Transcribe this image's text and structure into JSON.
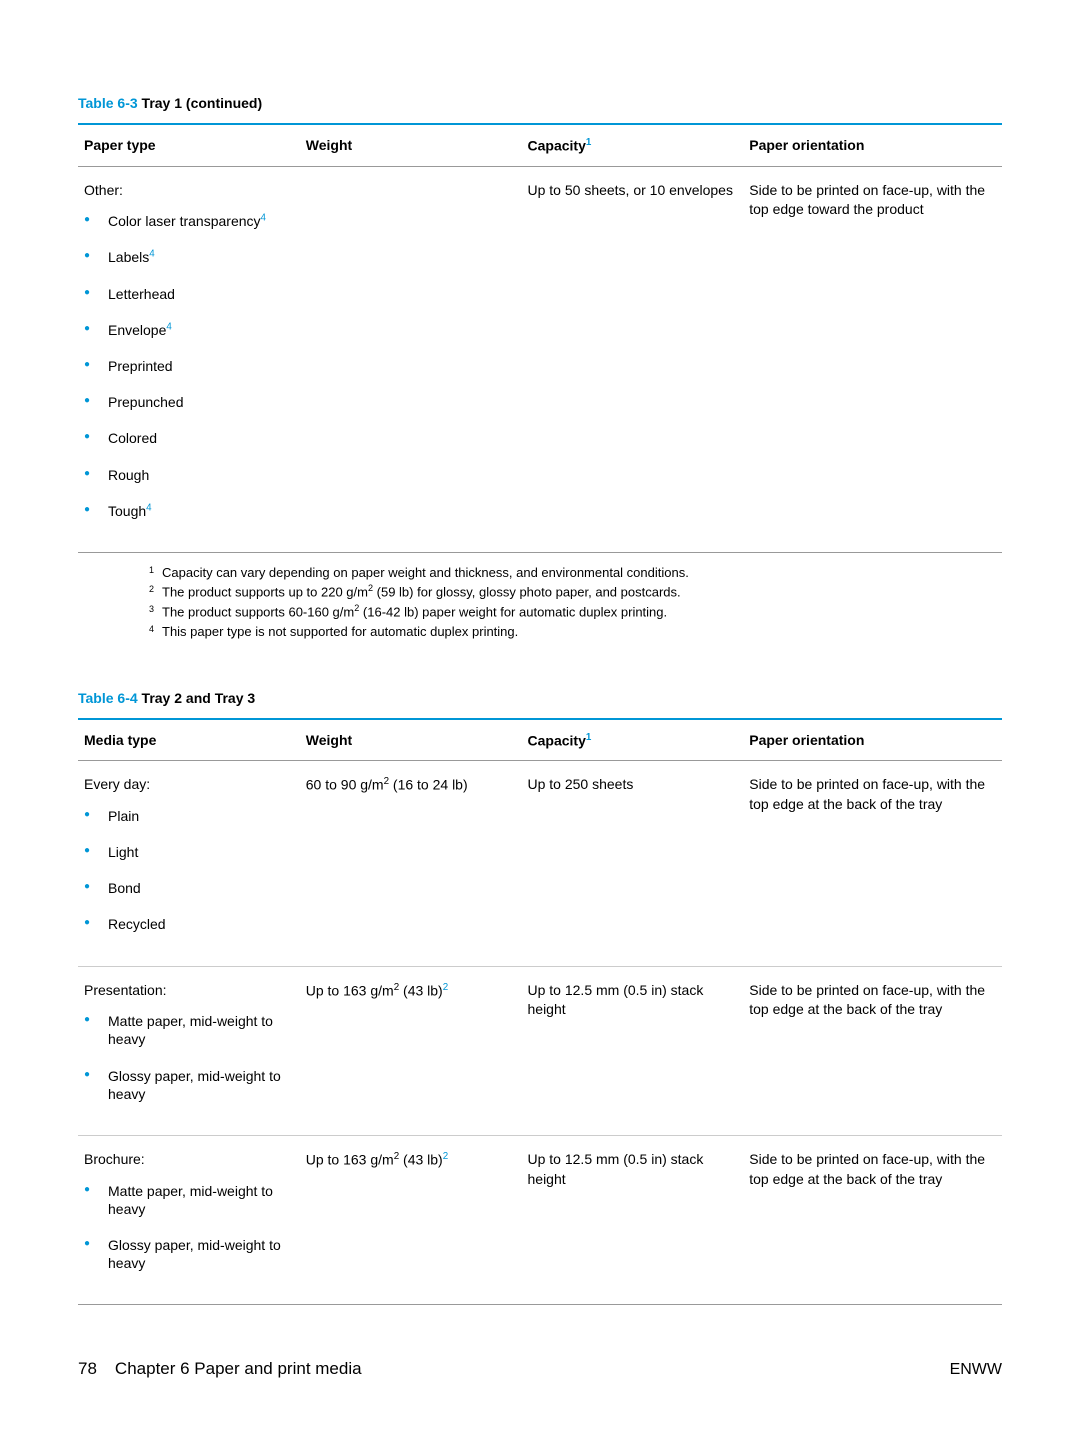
{
  "colors": {
    "accent": "#0096d6",
    "text": "#000000",
    "rule_main": "#0096d6",
    "rule_thin": "#999999",
    "background": "#ffffff"
  },
  "table63": {
    "caption_num": "Table 6-3",
    "caption_text": "  Tray 1 (continued)",
    "headers": {
      "c1": "Paper type",
      "c2": "Weight",
      "c3_text": "Capacity",
      "c3_sup": "1",
      "c4": "Paper orientation"
    },
    "row": {
      "paper_label": "Other:",
      "items": {
        "0": {
          "text": "Color laser transparency",
          "sup": "4"
        },
        "1": {
          "text": "Labels",
          "sup": "4"
        },
        "2": {
          "text": "Letterhead",
          "sup": ""
        },
        "3": {
          "text": "Envelope",
          "sup": "4"
        },
        "4": {
          "text": "Preprinted",
          "sup": ""
        },
        "5": {
          "text": "Prepunched",
          "sup": ""
        },
        "6": {
          "text": "Colored",
          "sup": ""
        },
        "7": {
          "text": "Rough",
          "sup": ""
        },
        "8": {
          "text": "Tough",
          "sup": "4"
        }
      },
      "weight": "",
      "capacity": "Up to 50 sheets, or 10 envelopes",
      "orientation": "Side to be printed on face-up, with the top edge toward the product"
    },
    "footnotes": {
      "0": {
        "n": "1",
        "text": "Capacity can vary depending on paper weight and thickness, and environmental conditions."
      },
      "1": {
        "n": "2",
        "pre": "The product supports up to 220 g/m",
        "sup": "2",
        "post": " (59 lb) for glossy, glossy photo paper, and postcards."
      },
      "2": {
        "n": "3",
        "pre": "The product supports 60-160 g/m",
        "sup": "2",
        "post": " (16-42 lb) paper weight for automatic duplex printing."
      },
      "3": {
        "n": "4",
        "text": "This paper type is not supported for automatic duplex printing."
      }
    }
  },
  "table64": {
    "caption_num": "Table 6-4",
    "caption_text": "  Tray 2 and Tray 3",
    "headers": {
      "c1": "Media type",
      "c2": "Weight",
      "c3_text": "Capacity",
      "c3_sup": "1",
      "c4": "Paper orientation"
    },
    "rows": {
      "0": {
        "label": "Every day:",
        "items": {
          "0": {
            "text": "Plain"
          },
          "1": {
            "text": "Light"
          },
          "2": {
            "text": "Bond"
          },
          "3": {
            "text": "Recycled"
          }
        },
        "weight_pre": "60 to 90 g/m",
        "weight_sup1": "2",
        "weight_post": " (16 to 24 lb)",
        "weight_sup2": "",
        "capacity": "Up to 250 sheets",
        "orientation": "Side to be printed on face-up, with the top edge at the back of the tray"
      },
      "1": {
        "label": "Presentation:",
        "items": {
          "0": {
            "text": "Matte paper, mid-weight to heavy"
          },
          "1": {
            "text": "Glossy paper, mid-weight to heavy"
          }
        },
        "weight_pre": "Up to 163 g/m",
        "weight_sup1": "2",
        "weight_post": " (43 lb)",
        "weight_sup2": "2",
        "capacity": "Up to 12.5 mm (0.5 in) stack height",
        "orientation": "Side to be printed on face-up, with the top edge at the back of the tray"
      },
      "2": {
        "label": "Brochure:",
        "items": {
          "0": {
            "text": "Matte paper, mid-weight to heavy"
          },
          "1": {
            "text": "Glossy paper, mid-weight to heavy"
          }
        },
        "weight_pre": "Up to 163 g/m",
        "weight_sup1": "2",
        "weight_post": " (43 lb)",
        "weight_sup2": "2",
        "capacity": "Up to 12.5 mm (0.5 in) stack height",
        "orientation": "Side to be printed on face-up, with the top edge at the back of the tray"
      }
    }
  },
  "footer": {
    "page": "78",
    "chapter": "Chapter 6   Paper and print media",
    "right": "ENWW"
  }
}
